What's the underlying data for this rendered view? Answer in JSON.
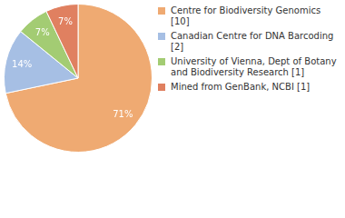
{
  "chart_data": {
    "type": "pie",
    "categories": [
      "Centre for Biodiversity Genomics [10]",
      "Canadian Centre for DNA Barcoding [2]",
      "University of Vienna, Dept of Botany and Biodiversity Research [1]",
      "Mined from GenBank, NCBI [1]"
    ],
    "values": [
      71,
      14,
      7,
      7
    ],
    "value_labels": [
      "71%",
      "14%",
      "7%",
      "7%"
    ],
    "colors": [
      "#efaa72",
      "#a6bfe4",
      "#a3cc73",
      "#e08060"
    ],
    "data_labels": true,
    "legend": "right"
  }
}
